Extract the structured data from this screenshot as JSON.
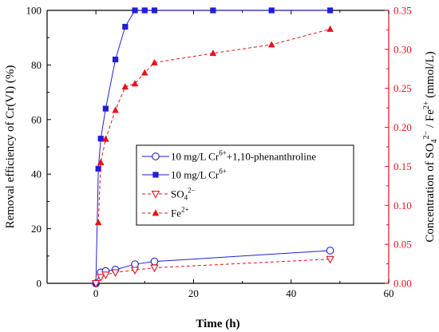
{
  "chart_data": {
    "type": "line",
    "xlabel": "Time (h)",
    "ylabel_left": "Removal efficiency of Cr(VI) (%)",
    "ylabel_right_parts": [
      "Concentration of SO",
      "4",
      "2−",
      " / Fe",
      "2+",
      " (mmol/L)"
    ],
    "xlim": [
      -10,
      60
    ],
    "ylim_left": [
      0,
      100
    ],
    "ylim_right": [
      0,
      0.35
    ],
    "x_ticks": [
      "0",
      "20",
      "40",
      "60"
    ],
    "x_tick_values": [
      0,
      20,
      40,
      60
    ],
    "y_left_ticks": [
      "0",
      "20",
      "40",
      "60",
      "80",
      "100"
    ],
    "y_left_tick_values": [
      0,
      20,
      40,
      60,
      80,
      100
    ],
    "y_right_ticks": [
      "0.00",
      "0.05",
      "0.10",
      "0.15",
      "0.20",
      "0.25",
      "0.30",
      "0.35"
    ],
    "y_right_tick_values": [
      0,
      0.05,
      0.1,
      0.15,
      0.2,
      0.25,
      0.3,
      0.35
    ],
    "grid": false,
    "legend_position": "middle-right",
    "colors": {
      "left_axis": "#000000",
      "right_axis": "#e8101a",
      "blue": "#1f1fd6",
      "red": "#e8101a"
    },
    "series": [
      {
        "key": "phen",
        "legend_parts": [
          "10 mg/L Cr",
          "6+",
          "+1,10-phenanthroline"
        ],
        "axis": "left",
        "color": "#1f1fd6",
        "marker": "circle-open",
        "dash": false,
        "x": [
          0,
          1,
          2,
          4,
          8,
          12,
          48
        ],
        "y": [
          0,
          4,
          4.5,
          5,
          7,
          8,
          12
        ]
      },
      {
        "key": "cr",
        "legend_parts": [
          "10 mg/L Cr",
          "6+",
          ""
        ],
        "axis": "left",
        "color": "#1f1fd6",
        "marker": "square-filled",
        "dash": false,
        "x": [
          0,
          0.5,
          1,
          2,
          4,
          6,
          8,
          10,
          12,
          24,
          36,
          48
        ],
        "y": [
          0,
          42,
          53,
          64,
          82,
          94,
          100,
          100,
          100,
          100,
          100,
          100
        ]
      },
      {
        "key": "so4",
        "legend_parts": [
          "SO",
          "4",
          "2−"
        ],
        "axis": "right",
        "color": "#e8101a",
        "marker": "triangle-down-open",
        "dash": true,
        "x": [
          0,
          1,
          2,
          4,
          8,
          12,
          48
        ],
        "y": [
          0,
          0.008,
          0.011,
          0.014,
          0.017,
          0.02,
          0.031
        ]
      },
      {
        "key": "fe",
        "legend_parts": [
          "Fe",
          "2+",
          ""
        ],
        "axis": "right",
        "color": "#e8101a",
        "marker": "triangle-up-filled",
        "dash": true,
        "x": [
          0.5,
          1,
          2,
          4,
          6,
          8,
          10,
          12,
          24,
          36,
          48
        ],
        "y": [
          0.078,
          0.155,
          0.185,
          0.222,
          0.252,
          0.256,
          0.27,
          0.283,
          0.295,
          0.306,
          0.326
        ]
      }
    ]
  }
}
